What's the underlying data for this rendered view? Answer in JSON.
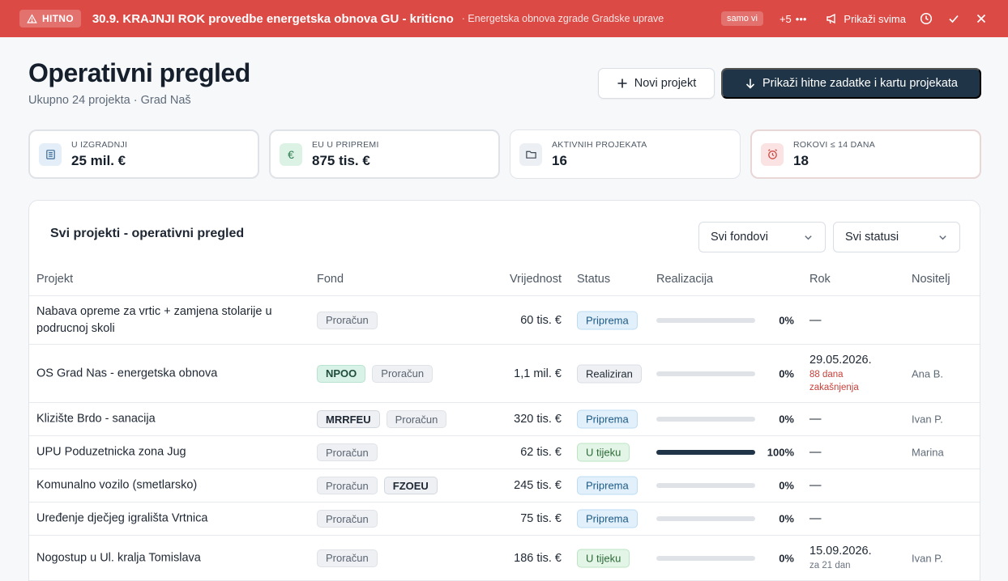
{
  "alert": {
    "badge": "HITNO",
    "title": "30.9. KRAJNJI ROK provedbe energetska obnova GU - kriticno",
    "subtitle": "· Energetska obnova zgrade Gradske uprave",
    "chip": "samo vi",
    "more": "+5",
    "show_all": "Prikaži svima",
    "accent": "#db4a45"
  },
  "header": {
    "title": "Operativni pregled",
    "subtitle": "Ukupno 24 projekta · Grad Naš",
    "new_project": "Novi projekt",
    "show_urgent": "Prikaži hitne zadatke i kartu projekata"
  },
  "stats": [
    {
      "label": "U IZGRADNJI",
      "value": "25 mil. €",
      "icon": "building-icon"
    },
    {
      "label": "EU U PRIPREMI",
      "value": "875 tis. €",
      "icon": "euro-icon"
    },
    {
      "label": "AKTIVNIH PROJEKATA",
      "value": "16",
      "icon": "folder-icon"
    },
    {
      "label": "ROKOVI ≤ 14 DANA",
      "value": "18",
      "icon": "alarm-icon"
    }
  ],
  "table": {
    "title": "Svi projekti - operativni pregled",
    "filters": {
      "fund": "Svi fondovi",
      "status": "Svi statusi"
    },
    "columns": {
      "project": "Projekt",
      "fund": "Fond",
      "value": "Vrijednost",
      "status": "Status",
      "progress": "Realizacija",
      "deadline": "Rok",
      "owner": "Nositelj"
    },
    "rows": [
      {
        "name": "Nabava opreme za vrtic + zamjena stolarije u podrucnoj skoli",
        "funds": [
          "Proračun"
        ],
        "value": "60 tis. €",
        "status": "Priprema",
        "progress": 0,
        "progress_label": "0%",
        "deadline": "—",
        "deadline_note": "",
        "owner": ""
      },
      {
        "name": "OS Grad Nas - energetska obnova",
        "funds": [
          "NPOO",
          "Proračun"
        ],
        "value": "1,1 mil. €",
        "status": "Realiziran",
        "progress": 0,
        "progress_label": "0%",
        "deadline": "29.05.2026.",
        "deadline_note": "88 dana zakašnjenja",
        "owner": "Ana B."
      },
      {
        "name": "Klizište Brdo - sanacija",
        "funds": [
          "MRRFEU",
          "Proračun"
        ],
        "value": "320 tis. €",
        "status": "Priprema",
        "progress": 0,
        "progress_label": "0%",
        "deadline": "—",
        "deadline_note": "",
        "owner": "Ivan P."
      },
      {
        "name": "UPU Poduzetnicka zona Jug",
        "funds": [
          "Proračun"
        ],
        "value": "62 tis. €",
        "status": "U tijeku",
        "progress": 100,
        "progress_label": "100%",
        "deadline": "—",
        "deadline_note": "",
        "owner": "Marina"
      },
      {
        "name": "Komunalno vozilo (smetlarsko)",
        "funds": [
          "Proračun",
          "FZOEU"
        ],
        "value": "245 tis. €",
        "status": "Priprema",
        "progress": 0,
        "progress_label": "0%",
        "deadline": "—",
        "deadline_note": "",
        "owner": ""
      },
      {
        "name": "Uređenje dječjeg igrališta Vrtnica",
        "funds": [
          "Proračun"
        ],
        "value": "75 tis. €",
        "status": "Priprema",
        "progress": 0,
        "progress_label": "0%",
        "deadline": "—",
        "deadline_note": "",
        "owner": ""
      },
      {
        "name": "Nogostup u Ul. kralja Tomislava",
        "funds": [
          "Proračun"
        ],
        "value": "186 tis. €",
        "status": "U tijeku",
        "progress": 0,
        "progress_label": "0%",
        "deadline": "15.09.2026.",
        "deadline_note": "za 21 dan",
        "owner": "Ivan P."
      }
    ]
  }
}
